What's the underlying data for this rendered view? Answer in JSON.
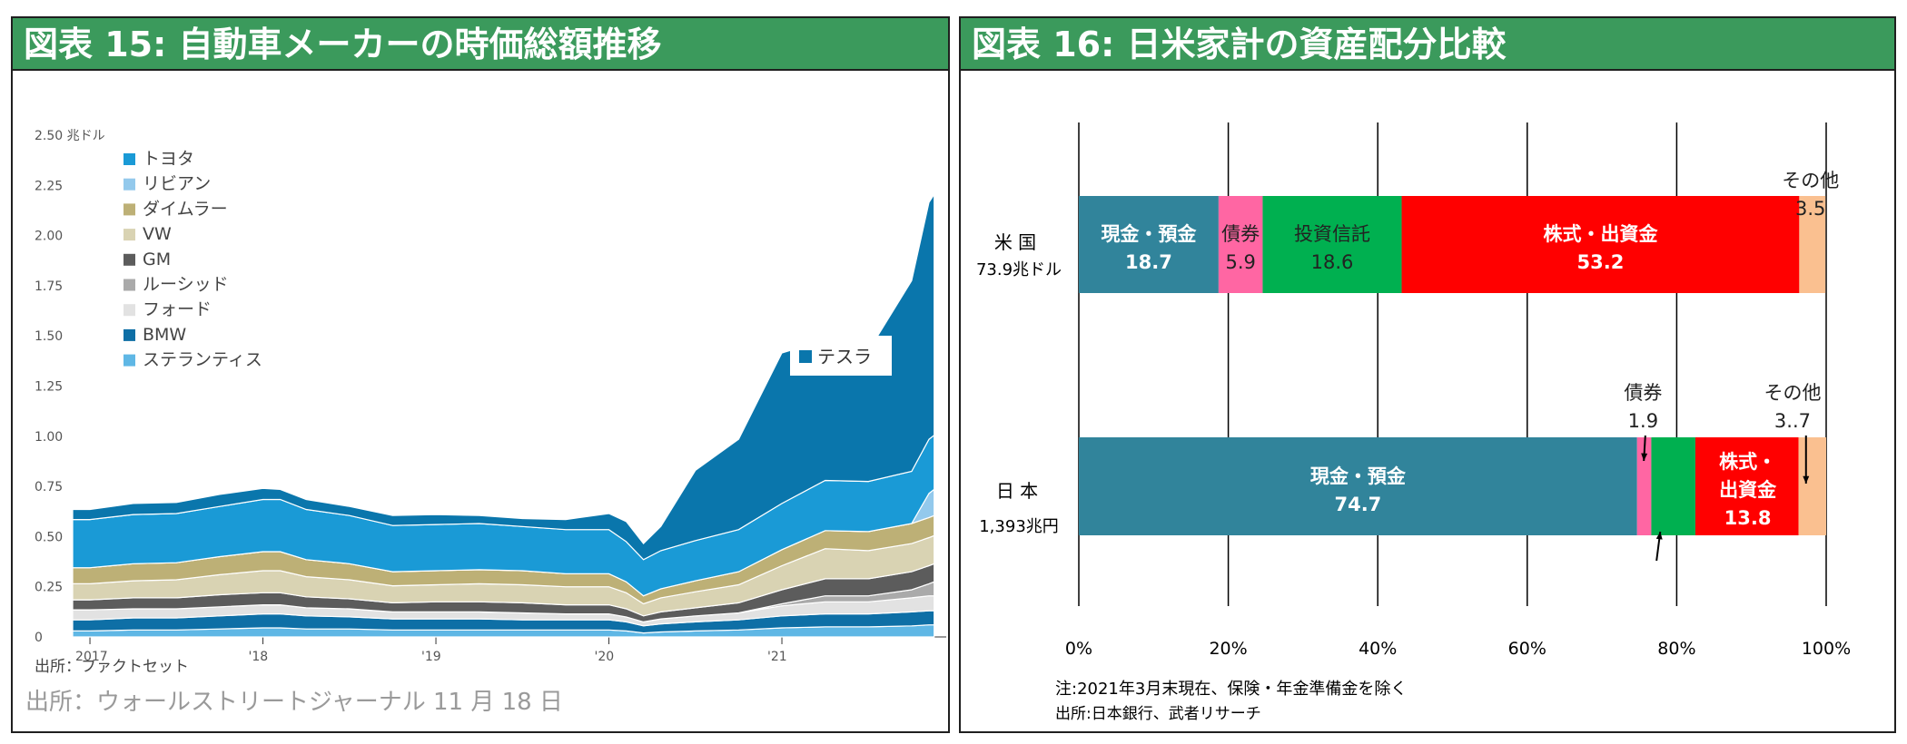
{
  "left_panel": {
    "title": "図表 15: 自動車メーカーの時価総額推移",
    "source_small": "出所：ファクトセット",
    "source_large": "出所：ウォールストリートジャーナル 11 月 18 日"
  },
  "right_panel": {
    "title": "図表 16: 日米家計の資産配分比較",
    "note": "注:2021年3月末現在、保険・年金準備金を除く",
    "source": "出所:日本銀行、武者リサーチ"
  },
  "colors": {
    "header_green": "#3b9a5c",
    "cash": "#31849b",
    "bonds": "#ff66a3",
    "funds": "#00b050",
    "equity": "#ff0000",
    "other": "#fac090",
    "tesla": "#0a76ac",
    "toyota": "#1a9ad6"
  },
  "chart_data": [
    {
      "type": "area",
      "stacked": true,
      "unit_label": "2.50 兆ドル",
      "y_ticks": [
        "2.50 兆ドル",
        "2.25",
        "2.00",
        "1.75",
        "1.50",
        "1.25",
        "1.00",
        "0.75",
        "0.50",
        "0.25",
        "0"
      ],
      "ylim": [
        0,
        2.5
      ],
      "x_ticks": [
        "2017",
        "'18",
        "'19",
        "'20",
        "'21"
      ],
      "x": [
        2016.9,
        2017.0,
        2017.25,
        2017.5,
        2017.75,
        2018.0,
        2018.1,
        2018.25,
        2018.5,
        2018.75,
        2019.0,
        2019.25,
        2019.5,
        2019.75,
        2020.0,
        2020.1,
        2020.2,
        2020.3,
        2020.5,
        2020.75,
        2021.0,
        2021.25,
        2021.5,
        2021.75,
        2021.85,
        2021.88
      ],
      "legend_position": "top-left",
      "legend": [
        "トヨタ",
        "リビアン",
        "ダイムラー",
        "VW",
        "GM",
        "ルーシッド",
        "フォード",
        "BMW",
        "ステランティス"
      ],
      "series_label": "テスラ",
      "series": [
        {
          "name": "ステランティス",
          "color": "#5fb7e5",
          "values": [
            0.03,
            0.03,
            0.035,
            0.035,
            0.04,
            0.045,
            0.045,
            0.04,
            0.04,
            0.035,
            0.035,
            0.035,
            0.035,
            0.035,
            0.035,
            0.03,
            0.02,
            0.025,
            0.03,
            0.035,
            0.045,
            0.05,
            0.05,
            0.055,
            0.06,
            0.06
          ]
        },
        {
          "name": "BMW",
          "color": "#0e6fa6",
          "values": [
            0.055,
            0.055,
            0.06,
            0.06,
            0.065,
            0.07,
            0.07,
            0.065,
            0.06,
            0.055,
            0.055,
            0.055,
            0.05,
            0.05,
            0.05,
            0.045,
            0.035,
            0.04,
            0.045,
            0.05,
            0.06,
            0.065,
            0.065,
            0.07,
            0.07,
            0.07
          ]
        },
        {
          "name": "フォード",
          "color": "#e2e2e2",
          "values": [
            0.05,
            0.05,
            0.045,
            0.045,
            0.045,
            0.045,
            0.045,
            0.04,
            0.04,
            0.035,
            0.035,
            0.035,
            0.035,
            0.03,
            0.03,
            0.025,
            0.02,
            0.025,
            0.03,
            0.035,
            0.05,
            0.06,
            0.06,
            0.07,
            0.075,
            0.075
          ]
        },
        {
          "name": "ルーシッド",
          "color": "#aaaaaa",
          "values": [
            0,
            0,
            0,
            0,
            0,
            0,
            0,
            0,
            0,
            0,
            0,
            0,
            0,
            0,
            0,
            0,
            0,
            0,
            0,
            0,
            0.01,
            0.03,
            0.03,
            0.04,
            0.06,
            0.07
          ]
        },
        {
          "name": "GM",
          "color": "#5c5c5c",
          "values": [
            0.05,
            0.05,
            0.055,
            0.055,
            0.06,
            0.06,
            0.06,
            0.055,
            0.05,
            0.045,
            0.05,
            0.05,
            0.05,
            0.045,
            0.045,
            0.04,
            0.03,
            0.035,
            0.04,
            0.05,
            0.07,
            0.085,
            0.085,
            0.09,
            0.09,
            0.09
          ]
        },
        {
          "name": "VW",
          "color": "#d9d3b3",
          "values": [
            0.08,
            0.08,
            0.085,
            0.09,
            0.1,
            0.11,
            0.11,
            0.1,
            0.095,
            0.085,
            0.085,
            0.09,
            0.09,
            0.09,
            0.09,
            0.08,
            0.06,
            0.07,
            0.08,
            0.09,
            0.12,
            0.15,
            0.14,
            0.14,
            0.14,
            0.14
          ]
        },
        {
          "name": "ダイムラー",
          "color": "#bdb076",
          "values": [
            0.08,
            0.08,
            0.085,
            0.085,
            0.09,
            0.095,
            0.095,
            0.085,
            0.08,
            0.07,
            0.07,
            0.07,
            0.07,
            0.065,
            0.065,
            0.055,
            0.04,
            0.045,
            0.055,
            0.065,
            0.08,
            0.09,
            0.095,
            0.1,
            0.1,
            0.1
          ]
        },
        {
          "name": "リビアン",
          "color": "#93c9ec",
          "values": [
            0,
            0,
            0,
            0,
            0,
            0,
            0,
            0,
            0,
            0,
            0,
            0,
            0,
            0,
            0,
            0,
            0,
            0,
            0,
            0,
            0,
            0,
            0,
            0,
            0.12,
            0.13
          ]
        },
        {
          "name": "トヨタ",
          "color": "#1a9ad6",
          "values": [
            0.24,
            0.24,
            0.245,
            0.245,
            0.25,
            0.26,
            0.26,
            0.25,
            0.24,
            0.23,
            0.23,
            0.23,
            0.22,
            0.22,
            0.22,
            0.2,
            0.18,
            0.19,
            0.2,
            0.21,
            0.23,
            0.25,
            0.25,
            0.26,
            0.27,
            0.27
          ]
        },
        {
          "name": "テスラ",
          "color": "#0a76ac",
          "values": [
            0.05,
            0.05,
            0.055,
            0.055,
            0.06,
            0.055,
            0.05,
            0.05,
            0.045,
            0.05,
            0.05,
            0.04,
            0.04,
            0.05,
            0.08,
            0.1,
            0.08,
            0.12,
            0.35,
            0.45,
            0.75,
            0.7,
            0.65,
            0.95,
            1.18,
            1.2
          ]
        }
      ]
    },
    {
      "type": "bar",
      "orientation": "horizontal",
      "stacked": true,
      "x_ticks": [
        "0%",
        "20%",
        "40%",
        "60%",
        "80%",
        "100%"
      ],
      "xlim": [
        0,
        100
      ],
      "categories": [
        {
          "name": "米 国",
          "total": "73.9兆ドル"
        },
        {
          "name": "日 本",
          "total": "1,393兆円"
        }
      ],
      "series": [
        {
          "name": "現金・預金",
          "color": "#31849b",
          "values": [
            18.7,
            74.7
          ]
        },
        {
          "name": "債券",
          "color": "#ff66a3",
          "values": [
            5.9,
            1.9
          ]
        },
        {
          "name": "投資信託",
          "color": "#00b050",
          "values": [
            18.6,
            5.9
          ]
        },
        {
          "name": "株式・出資金",
          "color": "#ff0000",
          "values": [
            53.2,
            13.8
          ]
        },
        {
          "name": "その他",
          "color": "#fac090",
          "values": [
            3.5,
            3.7
          ]
        }
      ],
      "labels": {
        "us_cash": [
          "現金・預金",
          "18.7"
        ],
        "us_bond": [
          "債券",
          "5.9"
        ],
        "us_fund": [
          "投資信託",
          "18.6"
        ],
        "us_equity": [
          "株式・出資金",
          "53.2"
        ],
        "us_other": [
          "その他",
          "3.5"
        ],
        "jp_cash": [
          "現金・預金",
          "74.7"
        ],
        "jp_bond": [
          "債券",
          "1.9"
        ],
        "jp_equity": [
          "株式・",
          "出資金",
          "13.8"
        ],
        "jp_other": [
          "その他",
          "3..7"
        ]
      }
    }
  ]
}
